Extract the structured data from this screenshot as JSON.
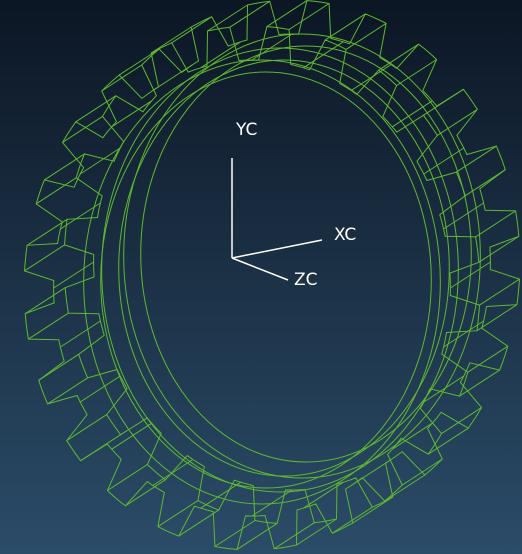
{
  "axes": {
    "y": "YC",
    "x": "XC",
    "z": "ZC"
  }
}
